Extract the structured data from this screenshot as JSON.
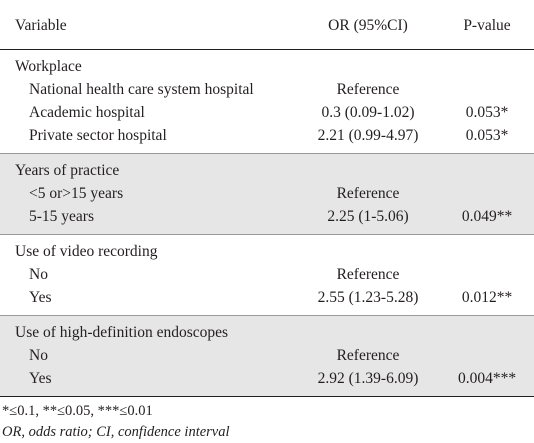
{
  "header": [
    "Variable",
    "OR (95%CI)",
    "P-value"
  ],
  "groups": [
    {
      "title": "Workplace",
      "rows": [
        {
          "label": "National health care system hospital",
          "or": "Reference"
        },
        {
          "label": "Academic hospital",
          "or": "0.3 (0.09-1.02)",
          "p": "0.053*"
        },
        {
          "label": "Private sector hospital",
          "or": "2.21 (0.99-4.97)",
          "p": "0.053*"
        }
      ]
    },
    {
      "title": "Years of practice",
      "rows": [
        {
          "label": "<5 or>15 years",
          "or": "Reference"
        },
        {
          "label": "5-15 years",
          "or": "2.25 (1-5.06)",
          "p": "0.049**"
        }
      ]
    },
    {
      "title": "Use of video recording",
      "rows": [
        {
          "label": "No",
          "or": "Reference"
        },
        {
          "label": "Yes",
          "or": "2.55 (1.23-5.28)",
          "p": "0.012**"
        }
      ]
    },
    {
      "title": "Use of high-definition endoscopes",
      "rows": [
        {
          "label": "No",
          "or": "Reference"
        },
        {
          "label": "Yes",
          "or": "2.92 (1.39-6.09)",
          "p": "0.004***"
        }
      ]
    }
  ],
  "footnotes": [
    "*≤0.1, **≤0.05, ***≤0.01",
    "OR, odds ratio; CI, confidence interval"
  ]
}
